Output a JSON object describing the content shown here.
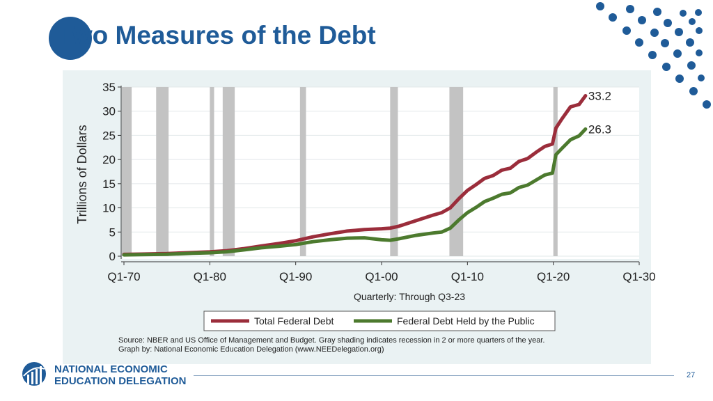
{
  "slide": {
    "title": "Two Measures of the Debt",
    "page_number": "27",
    "org_line1": "NATIONAL ECONOMIC",
    "org_line2": "EDUCATION DELEGATION"
  },
  "colors": {
    "brand_blue": "#1f5b98",
    "total_debt": "#9b2d3b",
    "public_debt": "#4c7a2e",
    "recession": "#c3c3c3",
    "panel_bg": "#eaf2f3"
  },
  "chart_data": {
    "type": "line",
    "ylabel": "Trillions of Dollars",
    "xlabel": "Quarterly: Through Q3-23",
    "ylim": [
      0,
      35
    ],
    "xlim": [
      1970,
      2030
    ],
    "yticks": [
      0,
      5,
      10,
      15,
      20,
      25,
      30,
      35
    ],
    "xticks": [
      1970,
      1980,
      1990,
      2000,
      2010,
      2020,
      2030
    ],
    "xtick_labels": [
      "Q1-70",
      "Q1-80",
      "Q1-90",
      "Q1-00",
      "Q1-10",
      "Q1-20",
      "Q1-30"
    ],
    "grid": true,
    "legend_position": "bottom",
    "recessions": [
      [
        1969.75,
        1970.9
      ],
      [
        1973.75,
        1975.2
      ],
      [
        1980.0,
        1980.5
      ],
      [
        1981.5,
        1982.9
      ],
      [
        1990.5,
        1991.2
      ],
      [
        2001.0,
        2001.9
      ],
      [
        2007.9,
        2009.5
      ],
      [
        2020.0,
        2020.5
      ]
    ],
    "series": [
      {
        "name": "Total Federal Debt",
        "end_label": "33.2",
        "x": [
          1970,
          1972,
          1975,
          1978,
          1980,
          1982,
          1984,
          1986,
          1988,
          1990,
          1992,
          1994,
          1996,
          1998,
          2000,
          2001,
          2002,
          2004,
          2006,
          2007,
          2008,
          2009,
          2010,
          2011,
          2012,
          2013,
          2014,
          2015,
          2016,
          2017,
          2018,
          2019,
          2019.9,
          2020.3,
          2021,
          2022,
          2023,
          2023.75
        ],
        "values": [
          0.38,
          0.43,
          0.54,
          0.77,
          0.91,
          1.14,
          1.57,
          2.12,
          2.6,
          3.2,
          4.0,
          4.64,
          5.2,
          5.5,
          5.67,
          5.8,
          6.2,
          7.35,
          8.5,
          9.0,
          10.0,
          11.9,
          13.6,
          14.8,
          16.1,
          16.7,
          17.8,
          18.2,
          19.6,
          20.2,
          21.5,
          22.7,
          23.2,
          26.5,
          28.4,
          30.9,
          31.4,
          33.2
        ]
      },
      {
        "name": "Federal Debt Held by the Public",
        "end_label": "26.3",
        "x": [
          1970,
          1972,
          1975,
          1978,
          1980,
          1982,
          1984,
          1986,
          1988,
          1990,
          1992,
          1994,
          1996,
          1998,
          2000,
          2001,
          2002,
          2004,
          2006,
          2007,
          2008,
          2009,
          2010,
          2011,
          2012,
          2013,
          2014,
          2015,
          2016,
          2017,
          2018,
          2019,
          2019.9,
          2020.3,
          2021,
          2022,
          2023,
          2023.75
        ],
        "values": [
          0.28,
          0.32,
          0.39,
          0.6,
          0.71,
          0.92,
          1.31,
          1.74,
          2.05,
          2.4,
          3.0,
          3.4,
          3.73,
          3.8,
          3.4,
          3.3,
          3.6,
          4.3,
          4.8,
          5.0,
          5.8,
          7.5,
          9.0,
          10.1,
          11.3,
          12.0,
          12.8,
          13.1,
          14.2,
          14.7,
          15.75,
          16.8,
          17.2,
          21.0,
          22.3,
          24.1,
          24.9,
          26.3
        ]
      }
    ],
    "source_line1": "Source: NBER and US Office of Management and Budget. Gray shading indicates recession in 2 or more quarters of the year.",
    "source_line2": "Graph by: National Economic Education Delegation (www.NEEDelegation.org)"
  }
}
